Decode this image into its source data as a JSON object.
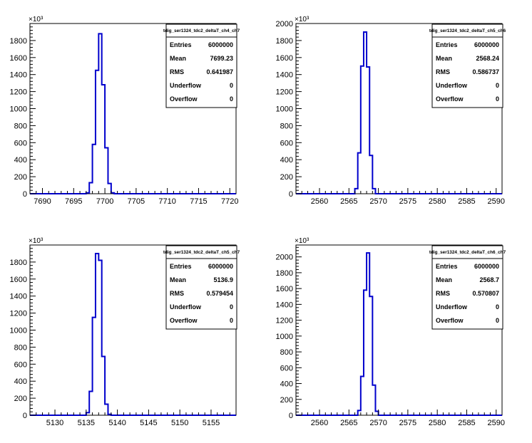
{
  "canvas": {
    "background": "#ffffff",
    "line_color": "#0000cc"
  },
  "chart_data": [
    {
      "type": "histogram",
      "title": "tdig_ser1324_tdc2_deltaT_ch4_ch7",
      "xlim": [
        7688,
        7721
      ],
      "ylim": [
        0,
        2000
      ],
      "y_multiplier": "×10³",
      "x_ticks": [
        7690,
        7695,
        7700,
        7705,
        7710,
        7715,
        7720
      ],
      "y_ticks": [
        0,
        200,
        400,
        600,
        800,
        1000,
        1200,
        1400,
        1600,
        1800
      ],
      "bin_width": 0.5,
      "bins": [
        {
          "x": 7697.0,
          "y": 10
        },
        {
          "x": 7697.5,
          "y": 130
        },
        {
          "x": 7698.0,
          "y": 580
        },
        {
          "x": 7698.5,
          "y": 1450
        },
        {
          "x": 7699.0,
          "y": 1880
        },
        {
          "x": 7699.5,
          "y": 1280
        },
        {
          "x": 7700.0,
          "y": 540
        },
        {
          "x": 7700.5,
          "y": 120
        },
        {
          "x": 7701.0,
          "y": 10
        }
      ],
      "stats": [
        {
          "label": "Entries",
          "value": "6000000"
        },
        {
          "label": "Mean",
          "value": "7699.23"
        },
        {
          "label": "RMS",
          "value": "0.641987"
        },
        {
          "label": "Underflow",
          "value": "0"
        },
        {
          "label": "Overflow",
          "value": "0"
        }
      ]
    },
    {
      "type": "histogram",
      "title": "tdig_ser1324_tdc2_deltaT_ch5_ch6",
      "xlim": [
        2556,
        2591
      ],
      "ylim": [
        0,
        2000
      ],
      "y_multiplier": "×10³",
      "x_ticks": [
        2560,
        2565,
        2570,
        2575,
        2580,
        2585,
        2590
      ],
      "y_ticks": [
        0,
        200,
        400,
        600,
        800,
        1000,
        1200,
        1400,
        1600,
        1800,
        2000
      ],
      "bin_width": 0.5,
      "bins": [
        {
          "x": 2566.0,
          "y": 60
        },
        {
          "x": 2566.5,
          "y": 480
        },
        {
          "x": 2567.0,
          "y": 1500
        },
        {
          "x": 2567.5,
          "y": 1900
        },
        {
          "x": 2568.0,
          "y": 1490
        },
        {
          "x": 2568.5,
          "y": 450
        },
        {
          "x": 2569.0,
          "y": 60
        }
      ],
      "stats": [
        {
          "label": "Entries",
          "value": "6000000"
        },
        {
          "label": "Mean",
          "value": "2568.24"
        },
        {
          "label": "RMS",
          "value": "0.586737"
        },
        {
          "label": "Underflow",
          "value": "0"
        },
        {
          "label": "Overflow",
          "value": "0"
        }
      ]
    },
    {
      "type": "histogram",
      "title": "tdig_ser1324_tdc2_deltaT_ch5_ch7",
      "xlim": [
        5126,
        5159
      ],
      "ylim": [
        0,
        2000
      ],
      "y_multiplier": "×10³",
      "x_ticks": [
        5130,
        5135,
        5140,
        5145,
        5150,
        5155
      ],
      "y_ticks": [
        0,
        200,
        400,
        600,
        800,
        1000,
        1200,
        1400,
        1600,
        1800
      ],
      "bin_width": 0.5,
      "bins": [
        {
          "x": 5135.0,
          "y": 30
        },
        {
          "x": 5135.5,
          "y": 280
        },
        {
          "x": 5136.0,
          "y": 1150
        },
        {
          "x": 5136.5,
          "y": 1900
        },
        {
          "x": 5137.0,
          "y": 1820
        },
        {
          "x": 5137.5,
          "y": 690
        },
        {
          "x": 5138.0,
          "y": 130
        },
        {
          "x": 5138.5,
          "y": 10
        }
      ],
      "stats": [
        {
          "label": "Entries",
          "value": "6000000"
        },
        {
          "label": "Mean",
          "value": "5136.9"
        },
        {
          "label": "RMS",
          "value": "0.579454"
        },
        {
          "label": "Underflow",
          "value": "0"
        },
        {
          "label": "Overflow",
          "value": "0"
        }
      ]
    },
    {
      "type": "histogram",
      "title": "tdig_ser1324_tdc2_deltaT_ch6_ch7",
      "xlim": [
        2556,
        2591
      ],
      "ylim": [
        0,
        2150
      ],
      "y_multiplier": "×10³",
      "x_ticks": [
        2560,
        2565,
        2570,
        2575,
        2580,
        2585,
        2590
      ],
      "y_ticks": [
        0,
        200,
        400,
        600,
        800,
        1000,
        1200,
        1400,
        1600,
        1800,
        2000
      ],
      "bin_width": 0.5,
      "bins": [
        {
          "x": 2566.5,
          "y": 60
        },
        {
          "x": 2567.0,
          "y": 490
        },
        {
          "x": 2567.5,
          "y": 1580
        },
        {
          "x": 2568.0,
          "y": 2050
        },
        {
          "x": 2568.5,
          "y": 1500
        },
        {
          "x": 2569.0,
          "y": 380
        },
        {
          "x": 2569.5,
          "y": 50
        }
      ],
      "stats": [
        {
          "label": "Entries",
          "value": "6000000"
        },
        {
          "label": "Mean",
          "value": "2568.7"
        },
        {
          "label": "RMS",
          "value": "0.570807"
        },
        {
          "label": "Underflow",
          "value": "0"
        },
        {
          "label": "Overflow",
          "value": "0"
        }
      ]
    }
  ]
}
